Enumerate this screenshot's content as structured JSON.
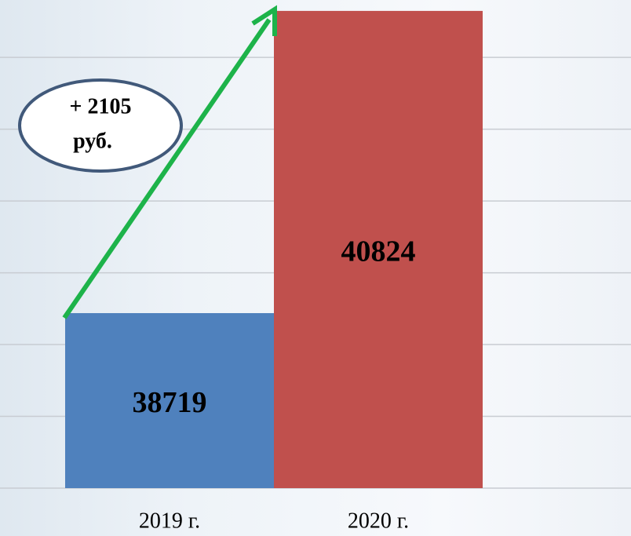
{
  "chart_data": {
    "type": "bar",
    "categories": [
      "2019 г.",
      "2020 г."
    ],
    "values": [
      38719,
      40824
    ],
    "colors": [
      "#4f81bd",
      "#c0504d"
    ],
    "ylim": [
      37500,
      40900
    ],
    "yticks": [
      37500,
      38000,
      38500,
      39000,
      39500,
      40000,
      40500
    ],
    "grid": true,
    "annotation": [
      "+ 2105",
      "руб."
    ]
  }
}
